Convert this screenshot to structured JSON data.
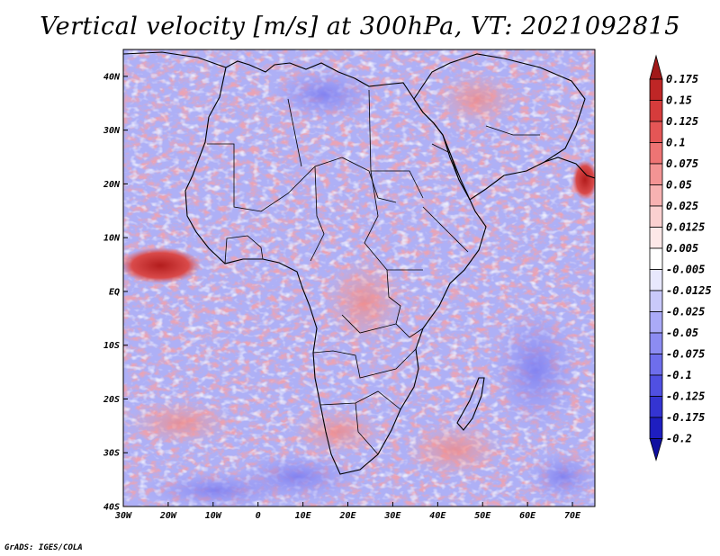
{
  "title": "Vertical velocity [m/s] at 300hPa, VT: 2021092815",
  "credit": "GrADS: IGES/COLA",
  "map": {
    "projection": "lat-lon",
    "lon_range": [
      -30,
      75
    ],
    "lat_range": [
      -40,
      45
    ],
    "lon_ticks": [
      "30W",
      "20W",
      "10W",
      "0",
      "10E",
      "20E",
      "30E",
      "40E",
      "50E",
      "60E",
      "70E"
    ],
    "lat_ticks": [
      "40S",
      "30S",
      "20S",
      "10S",
      "EQ",
      "10N",
      "20N",
      "30N",
      "40N"
    ]
  },
  "colorbar": {
    "levels": [
      "0.175",
      "0.15",
      "0.125",
      "0.1",
      "0.075",
      "0.05",
      "0.025",
      "0.0125",
      "0.005",
      "-0.005",
      "-0.0125",
      "-0.025",
      "-0.05",
      "-0.075",
      "-0.1",
      "-0.125",
      "-0.175",
      "-0.2"
    ],
    "colors": [
      "#a11919",
      "#bf2626",
      "#d63c3c",
      "#e45656",
      "#ee7474",
      "#f39494",
      "#f7b2b2",
      "#fad0d0",
      "#fde8e8",
      "#ffffff",
      "#e8e8fd",
      "#c9c9fa",
      "#aaaaf7",
      "#8c8cf2",
      "#6e6eec",
      "#5050e2",
      "#3434d2",
      "#1e1ec0",
      "#1010a0"
    ]
  }
}
